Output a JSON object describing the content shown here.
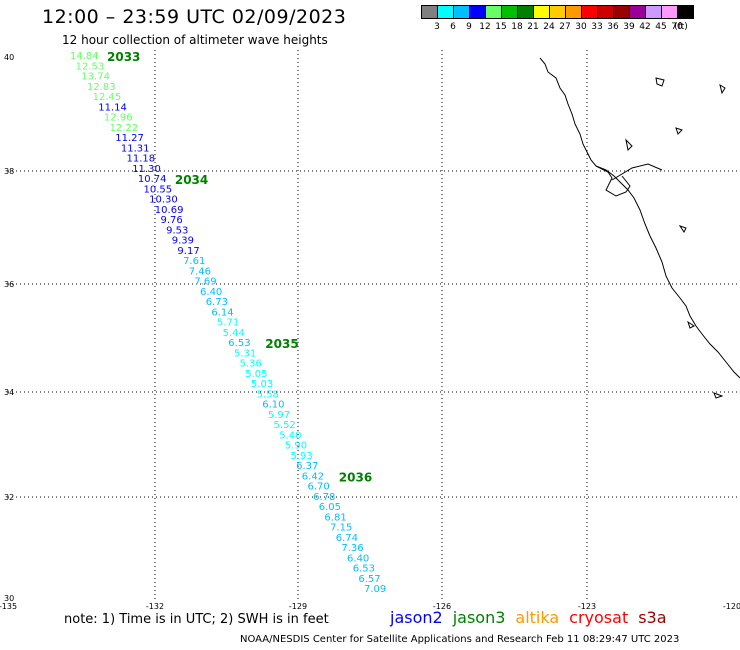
{
  "header": {
    "title": "12:00 – 23:59 UTC 02/09/2023",
    "subtitle": "12 hour collection of altimeter wave heights"
  },
  "legend": {
    "colors": [
      "#808080",
      "#00ffff",
      "#00bfff",
      "#0000ff",
      "#66ff66",
      "#00c000",
      "#008000",
      "#ffff00",
      "#ffcc00",
      "#ff9900",
      "#ff0000",
      "#cc0000",
      "#990000",
      "#990099",
      "#cc99ff",
      "#ff99ff",
      "#000000"
    ],
    "labels": [
      "3",
      "6",
      "9",
      "12",
      "15",
      "18",
      "21",
      "24",
      "27",
      "30",
      "33",
      "36",
      "39",
      "42",
      "45",
      "70",
      "(ft)"
    ]
  },
  "axes": {
    "lat_ticks": [
      "40",
      "38",
      "36",
      "34",
      "32",
      "30"
    ],
    "lon_ticks": [
      "-135",
      "-132",
      "-129",
      "-126",
      "-123",
      "-120"
    ]
  },
  "track": {
    "time_labels": [
      "2033",
      "2034",
      "2035",
      "2036"
    ],
    "wave_heights": [
      "14.84",
      "12.53",
      "13.74",
      "12.83",
      "12.45",
      "11.14",
      "12.96",
      "12.22",
      "11.27",
      "11.31",
      "11.18",
      "11.30",
      "10.74",
      "10.55",
      "10.30",
      "10.69",
      "9.76",
      "9.53",
      "9.39",
      "9.17",
      "7.61",
      "7.46",
      "7.69",
      "6.40",
      "6.73",
      "6.14",
      "5.71",
      "5.44",
      "6.53",
      "5.31",
      "5.36",
      "5.05",
      "5.03",
      "5.58",
      "6.10",
      "5.97",
      "5.52",
      "5.40",
      "5.90",
      "5.93",
      "6.37",
      "6.42",
      "6.70",
      "6.78",
      "6.05",
      "6.81",
      "7.15",
      "6.74",
      "7.36",
      "6.40",
      "6.53",
      "6.57",
      "7.09"
    ]
  },
  "footer": {
    "note": "note: 1) Time is in UTC; 2) SWH is in feet",
    "satellites": [
      {
        "name": "jason2",
        "color": "#0000ff"
      },
      {
        "name": "jason3",
        "color": "#008000"
      },
      {
        "name": "altika",
        "color": "#ff9900"
      },
      {
        "name": "cryosat",
        "color": "#ff0000"
      },
      {
        "name": "s3a",
        "color": "#990000"
      }
    ],
    "credit": "NOAA/NESDIS Center for Satellite Applications and Research   Feb 11 08:29:47 UTC 2023"
  }
}
